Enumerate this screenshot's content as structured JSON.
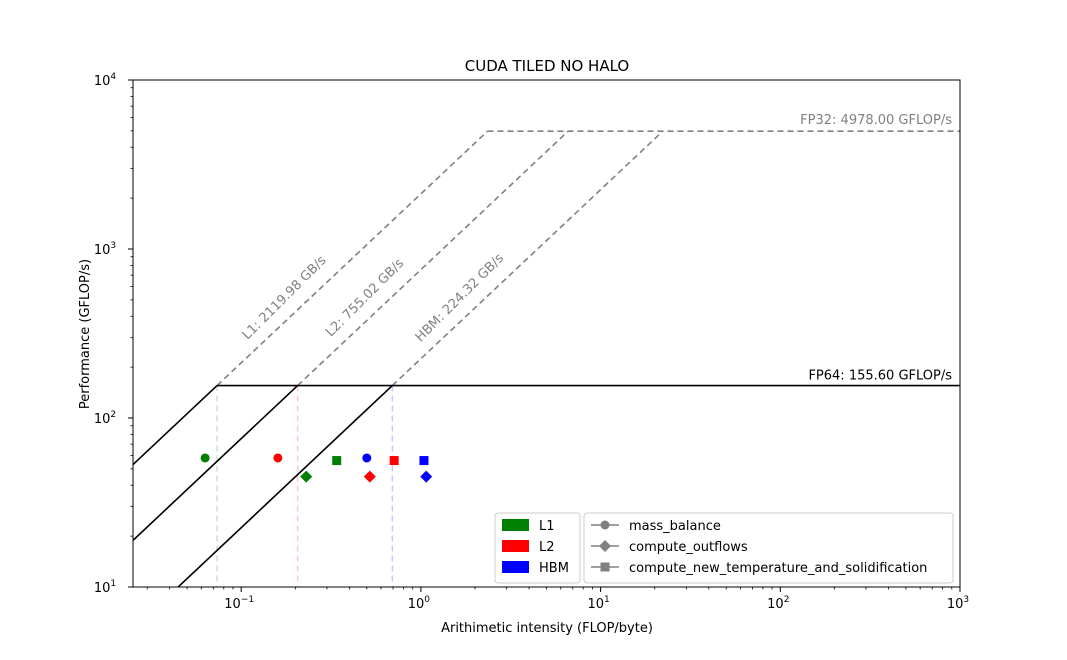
{
  "chart_data": {
    "type": "scatter",
    "title": "CUDA TILED NO HALO",
    "xlabel": "Arithimetic intensity (FLOP/byte)",
    "ylabel": "Performance (GFLOP/s)",
    "xscale": "log",
    "yscale": "log",
    "xlim": [
      0.025,
      1000
    ],
    "ylim": [
      10,
      10000
    ],
    "x_ticks": [
      {
        "value": 0.1,
        "base": "10",
        "exp": "−1"
      },
      {
        "value": 1,
        "base": "10",
        "exp": "0"
      },
      {
        "value": 10,
        "base": "10",
        "exp": "1"
      },
      {
        "value": 100,
        "base": "10",
        "exp": "2"
      },
      {
        "value": 1000,
        "base": "10",
        "exp": "3"
      }
    ],
    "y_ticks": [
      {
        "value": 10,
        "base": "10",
        "exp": "1"
      },
      {
        "value": 100,
        "base": "10",
        "exp": "2"
      },
      {
        "value": 1000,
        "base": "10",
        "exp": "3"
      },
      {
        "value": 10000,
        "base": "10",
        "exp": "4"
      }
    ],
    "grid": false,
    "ceilings": [
      {
        "name": "FP32",
        "label": "FP32: 4978.00 GFLOP/s",
        "gflops": 4978.0,
        "style": "dashed",
        "color": "#808080"
      },
      {
        "name": "FP64",
        "label": "FP64: 155.60 GFLOP/s",
        "gflops": 155.6,
        "style": "solid",
        "color": "#000000"
      }
    ],
    "bandwidths": [
      {
        "name": "L1",
        "label": "L1: 2119.98 GB/s",
        "gbps": 2119.98,
        "color": "#008000"
      },
      {
        "name": "L2",
        "label": "L2: 755.02 GB/s",
        "gbps": 755.02,
        "color": "#ff0000"
      },
      {
        "name": "HBM",
        "label": "HBM: 224.32 GB/s",
        "gbps": 224.32,
        "color": "#0000ff"
      }
    ],
    "kernels": [
      {
        "name": "mass_balance",
        "marker": "circle"
      },
      {
        "name": "compute_outflows",
        "marker": "diamond"
      },
      {
        "name": "compute_new_temperature_and_solidification",
        "marker": "square"
      }
    ],
    "points": [
      {
        "level": "L1",
        "kernel": "mass_balance",
        "x": 0.063,
        "y": 58
      },
      {
        "level": "L2",
        "kernel": "mass_balance",
        "x": 0.16,
        "y": 58
      },
      {
        "level": "HBM",
        "kernel": "mass_balance",
        "x": 0.5,
        "y": 58
      },
      {
        "level": "L1",
        "kernel": "compute_outflows",
        "x": 0.23,
        "y": 45
      },
      {
        "level": "L2",
        "kernel": "compute_outflows",
        "x": 0.52,
        "y": 45
      },
      {
        "level": "HBM",
        "kernel": "compute_outflows",
        "x": 1.07,
        "y": 45
      },
      {
        "level": "L1",
        "kernel": "compute_new_temperature_and_solidification",
        "x": 0.34,
        "y": 56
      },
      {
        "level": "L2",
        "kernel": "compute_new_temperature_and_solidification",
        "x": 0.71,
        "y": 56
      },
      {
        "level": "HBM",
        "kernel": "compute_new_temperature_and_solidification",
        "x": 1.04,
        "y": 56
      }
    ],
    "legend_position": "lower-right",
    "legend_levels": [
      "L1",
      "L2",
      "HBM"
    ],
    "legend_kernels": [
      "mass_balance",
      "compute_outflows",
      "compute_new_temperature_and_solidification"
    ]
  }
}
